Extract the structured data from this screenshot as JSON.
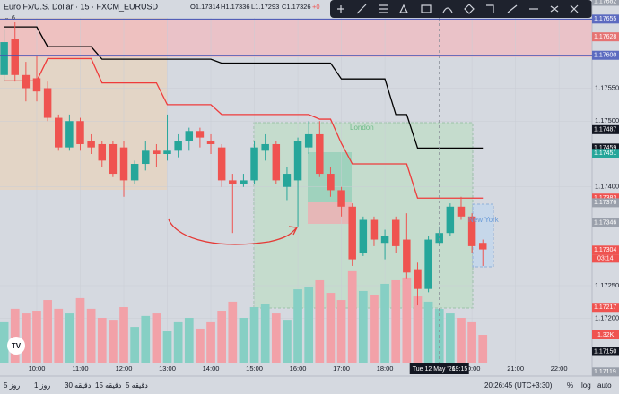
{
  "header": {
    "symbol": "Euro Fx/U.S. Dollar · 15 · FXCM_EURUSD",
    "ohlc": [
      "O1.17314",
      "H1.17336",
      "L1.17293",
      "C1.17326",
      "+0"
    ],
    "indicator": "6"
  },
  "chart_data": {
    "type": "candlestick",
    "x": [
      9.25,
      9.5,
      9.75,
      10,
      10.25,
      10.5,
      10.75,
      11,
      11.25,
      11.5,
      11.75,
      12,
      12.25,
      12.5,
      12.75,
      13,
      13.25,
      13.5,
      13.75,
      14,
      14.25,
      14.5,
      14.75,
      15,
      15.25,
      15.5,
      15.75,
      16,
      16.25,
      16.5,
      16.75,
      17,
      17.25,
      17.5,
      17.75,
      18,
      18.25,
      18.5,
      18.75,
      19,
      19.25,
      19.5,
      19.75,
      20,
      20.25
    ],
    "open": [
      1.1757,
      1.17625,
      1.1757,
      1.17565,
      1.1755,
      1.17505,
      1.1746,
      1.175,
      1.1747,
      1.17465,
      1.17465,
      1.1746,
      1.1741,
      1.17435,
      1.17455,
      1.1745,
      1.17455,
      1.1747,
      1.17485,
      1.1747,
      1.1746,
      1.1741,
      1.17405,
      1.1741,
      1.17455,
      1.17465,
      1.174,
      1.1741,
      1.1746,
      1.1748,
      1.1742,
      1.17395,
      1.1737,
      1.173,
      1.1735,
      1.17315,
      1.1735,
      1.1732,
      1.17275,
      1.17245,
      1.17315,
      1.1733,
      1.1737,
      1.17355,
      1.17315
    ],
    "high": [
      1.1764,
      1.1765,
      1.1759,
      1.176,
      1.1756,
      1.1751,
      1.1751,
      1.17505,
      1.1748,
      1.1747,
      1.1747,
      1.1747,
      1.1744,
      1.1747,
      1.17465,
      1.1751,
      1.1748,
      1.1749,
      1.1749,
      1.1748,
      1.17465,
      1.1742,
      1.1742,
      1.1747,
      1.1748,
      1.1747,
      1.1743,
      1.17475,
      1.175,
      1.175,
      1.1743,
      1.174,
      1.17375,
      1.17355,
      1.17355,
      1.17335,
      1.17355,
      1.1736,
      1.17285,
      1.17325,
      1.1734,
      1.17375,
      1.17385,
      1.1736,
      1.1732
    ],
    "low": [
      1.1756,
      1.1756,
      1.1753,
      1.1753,
      1.175,
      1.17455,
      1.17455,
      1.17455,
      1.1745,
      1.1743,
      1.17415,
      1.17385,
      1.17405,
      1.17425,
      1.1743,
      1.1744,
      1.17445,
      1.17455,
      1.1746,
      1.1745,
      1.174,
      1.1733,
      1.174,
      1.17405,
      1.1744,
      1.17405,
      1.1738,
      1.1734,
      1.1745,
      1.17415,
      1.17385,
      1.17355,
      1.1728,
      1.17295,
      1.1731,
      1.1729,
      1.173,
      1.1726,
      1.1722,
      1.1724,
      1.1731,
      1.17325,
      1.1735,
      1.173,
      1.1728
    ],
    "close": [
      1.1762,
      1.1757,
      1.1755,
      1.17545,
      1.17505,
      1.1746,
      1.175,
      1.17465,
      1.1746,
      1.1744,
      1.1742,
      1.1741,
      1.17435,
      1.17455,
      1.1745,
      1.17455,
      1.1747,
      1.17485,
      1.17475,
      1.17465,
      1.1741,
      1.17405,
      1.1741,
      1.1746,
      1.17465,
      1.1741,
      1.1742,
      1.1747,
      1.1748,
      1.1742,
      1.17395,
      1.1737,
      1.1729,
      1.1735,
      1.1732,
      1.17325,
      1.1731,
      1.1727,
      1.17245,
      1.1732,
      1.1733,
      1.1737,
      1.17355,
      1.1731,
      1.17305
    ],
    "volume": [
      1920,
      2560,
      2340,
      2470,
      2980,
      2560,
      2340,
      3070,
      2560,
      2130,
      2040,
      2640,
      1700,
      2220,
      2340,
      1490,
      1920,
      2130,
      1620,
      1920,
      2470,
      2900,
      2130,
      2640,
      2810,
      2340,
      2040,
      3490,
      3620,
      3920,
      3320,
      2980,
      4350,
      3410,
      3200,
      3750,
      3920,
      4050,
      3150,
      2900,
      2560,
      2340,
      2130,
      1920,
      1320
    ],
    "black_line": [
      1.17643,
      1.17643,
      1.17643,
      1.17643,
      1.17613,
      1.17613,
      1.17613,
      1.17613,
      1.17613,
      1.17594,
      1.17594,
      1.17594,
      1.17594,
      1.17594,
      1.17594,
      1.17594,
      1.17594,
      1.17594,
      1.17594,
      1.17594,
      1.17588,
      1.17588,
      1.17588,
      1.17588,
      1.17588,
      1.17588,
      1.17588,
      1.17588,
      1.17588,
      1.17588,
      1.17588,
      1.17564,
      1.17564,
      1.17564,
      1.17564,
      1.17564,
      1.1751,
      1.1751,
      1.17459,
      1.17459,
      1.17459,
      1.17459,
      1.17459,
      1.17459,
      1.17459
    ],
    "red_line": [
      1.17561,
      1.17561,
      1.17561,
      1.17561,
      1.17595,
      1.17595,
      1.17595,
      1.17595,
      1.17595,
      1.17558,
      1.17558,
      1.17558,
      1.17558,
      1.17558,
      1.17558,
      1.17525,
      1.17525,
      1.17525,
      1.17525,
      1.17525,
      1.1751,
      1.1751,
      1.1751,
      1.1751,
      1.1751,
      1.1751,
      1.1751,
      1.1751,
      1.1751,
      1.17503,
      1.17503,
      1.17466,
      1.17435,
      1.17435,
      1.17435,
      1.17435,
      1.17435,
      1.17435,
      1.17383,
      1.17383,
      1.17383,
      1.17383,
      1.17383,
      1.17383,
      1.17383
    ],
    "up_color": "#26a69a",
    "down_color": "#ef5350",
    "volume_up_color": "#86cfc4",
    "volume_down_color": "#f2a1a8",
    "xlim": [
      9.155,
      22.76
    ],
    "ylim": [
      1.17133,
      1.17684
    ],
    "vlim": [
      0,
      17250
    ],
    "xticks": [
      {
        "value": 10,
        "label": "10:00"
      },
      {
        "value": 11,
        "label": "11:00"
      },
      {
        "value": 12,
        "label": "12:00"
      },
      {
        "value": 13,
        "label": "13:00"
      },
      {
        "value": 14,
        "label": "14:00"
      },
      {
        "value": 15,
        "label": "15:00"
      },
      {
        "value": 16,
        "label": "16:00"
      },
      {
        "value": 17,
        "label": "17:00"
      },
      {
        "value": 18,
        "label": "18:00"
      },
      {
        "value": 20,
        "label": "20:00"
      },
      {
        "value": 21,
        "label": "21:00"
      },
      {
        "value": 22,
        "label": "22:00"
      }
    ],
    "yticks": [
      {
        "value": 1.1755,
        "label": "1.17550"
      },
      {
        "value": 1.175,
        "label": "1.17500"
      },
      {
        "value": 1.174,
        "label": "1.17400"
      },
      {
        "value": 1.1725,
        "label": "1.17250"
      },
      {
        "value": 1.172,
        "label": "1.17200"
      }
    ],
    "badges": [
      {
        "value": 1.17682,
        "label": "1.17682",
        "color": "#9aa0ab"
      },
      {
        "value": 1.17655,
        "label": "1.17655",
        "color": "#5c6bc0",
        "line": "#3f51b5"
      },
      {
        "value": 1.17628,
        "label": "1.17628",
        "color": "#e57373"
      },
      {
        "value": 1.176,
        "label": "1.17600",
        "color": "#5c6bc0",
        "line": "#3f51b5"
      },
      {
        "value": 1.17487,
        "label": "1.17487",
        "color": "#131722"
      },
      {
        "value": 1.17459,
        "label": "1.17459",
        "color": "#131722"
      },
      {
        "value": 1.17451,
        "label": "1.17451",
        "color": "#26a69a"
      },
      {
        "value": 1.17383,
        "label": "1.17383",
        "color": "#ef5350"
      },
      {
        "value": 1.17376,
        "label": "1.17376",
        "color": "#9aa0ab"
      },
      {
        "value": 1.17346,
        "label": "1.17346",
        "color": "#9aa0ab"
      },
      {
        "value": 1.17304,
        "label": "1.17304",
        "color": "#ef5350"
      },
      {
        "value": 1.17217,
        "label": "1.17217",
        "color": "#ef5350"
      },
      {
        "value": 1.17176,
        "label": "1.17176",
        "color": "#ef5350"
      },
      {
        "value": 1.1715,
        "label": "1.17150",
        "color": "#131722"
      },
      {
        "value": 1.17119,
        "label": "1.17119",
        "color": "#9aa0ab"
      }
    ],
    "countdown": "03:14",
    "volume_badge": {
      "value": 1320,
      "label": "1.32K",
      "color": "#ef5350"
    },
    "crosshair": {
      "x": 19.25,
      "date": "Tue 12 May '26",
      "time": "19:15"
    },
    "sessions": [
      "London",
      "New York"
    ]
  },
  "footer": {
    "intervals": [
      "5 روز",
      "1 روز",
      "30 دقیقه",
      "15 دقیقه",
      "5 دقیقه"
    ],
    "clock": "20:26:45 (UTC+3:30)",
    "percent": "%",
    "log": "log",
    "auto": "auto"
  }
}
